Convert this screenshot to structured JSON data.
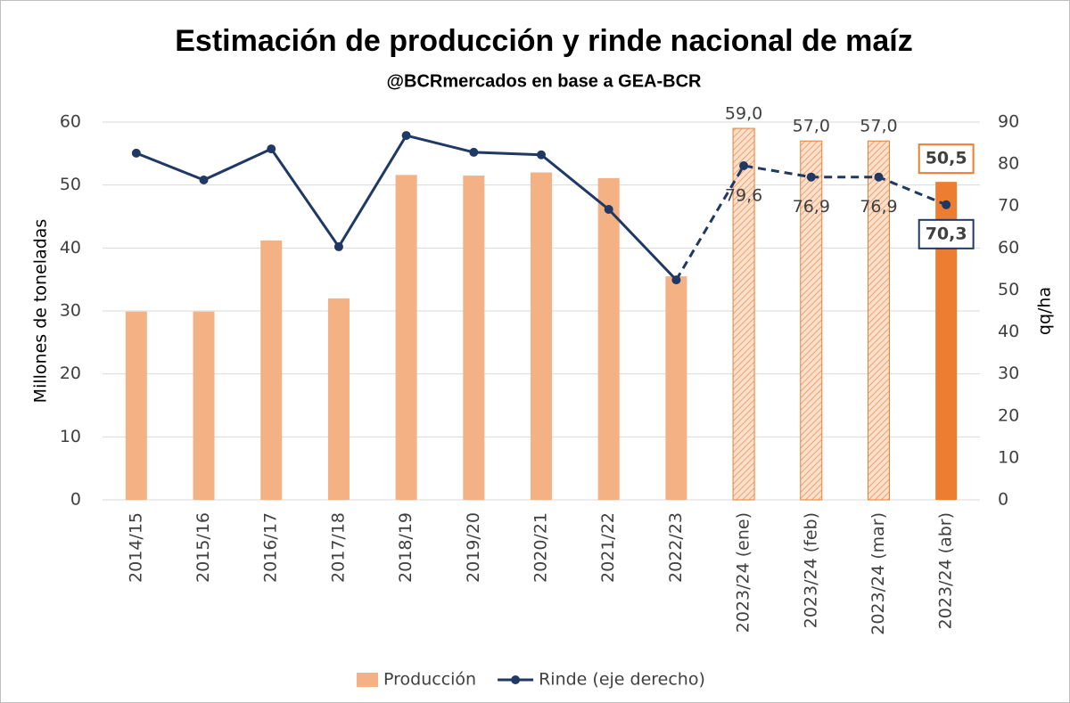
{
  "chart_data": {
    "type": "combo",
    "title": "Estimación de producción y rinde nacional de maíz",
    "subtitle": "@BCRmercados en base a GEA-BCR",
    "y_label": "Millones de toneladas",
    "y2_label": "qq/ha",
    "categories": [
      "2014/15",
      "2015/16",
      "2016/17",
      "2017/18",
      "2018/19",
      "2019/20",
      "2020/21",
      "2021/22",
      "2022/23",
      "2023/24 (ene)",
      "2023/24 (feb)",
      "2023/24 (mar)",
      "2023/24 (abr)"
    ],
    "series": [
      {
        "name": "Producción",
        "type": "bar",
        "color": "#f4b183",
        "values": [
          29.9,
          29.9,
          41.2,
          32,
          51.6,
          51.5,
          52,
          51.1,
          35.5,
          59.0,
          57.0,
          57.0,
          50.5
        ],
        "value_labels": [
          null,
          null,
          null,
          null,
          null,
          null,
          null,
          null,
          null,
          "59,0",
          "57,0",
          "57,0",
          "50,5"
        ],
        "patterns": [
          "solid",
          "solid",
          "solid",
          "solid",
          "solid",
          "solid",
          "solid",
          "solid",
          "solid",
          "hatched",
          "hatched",
          "hatched",
          "highlight"
        ]
      },
      {
        "name": "Rinde (eje derecho)",
        "type": "line",
        "axis": "y2",
        "color": "#1f3864",
        "values": [
          82.6,
          76.2,
          83.6,
          60.3,
          86.8,
          82.8,
          82.2,
          69.2,
          52.4,
          79.6,
          76.9,
          76.9,
          70.3
        ],
        "value_labels": [
          null,
          null,
          null,
          null,
          null,
          null,
          null,
          null,
          null,
          "79,6",
          "76,9",
          "76,9",
          "70,3"
        ],
        "dashed_from": 8
      }
    ],
    "highlight_color": "#ed7d31",
    "ylim": [
      0,
      60
    ],
    "yticks": [
      0,
      10,
      20,
      30,
      40,
      50,
      60
    ],
    "y2lim": [
      0,
      90
    ],
    "y2ticks": [
      0,
      10,
      20,
      30,
      40,
      50,
      60,
      70,
      80,
      90
    ],
    "grid": true,
    "legend": "bottom"
  }
}
